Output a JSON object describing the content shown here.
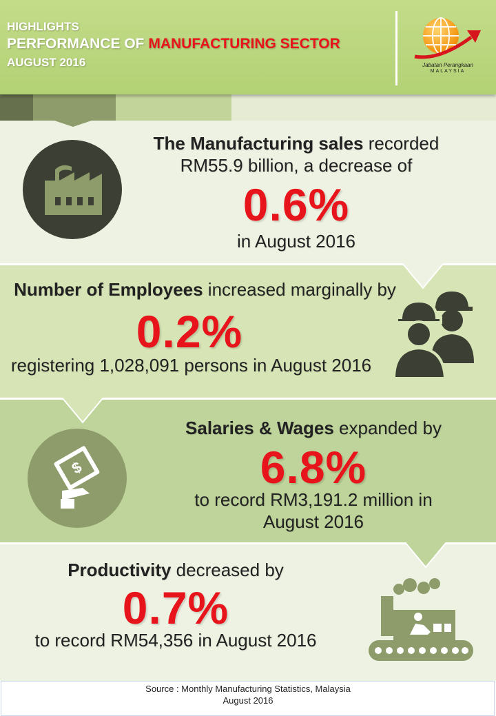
{
  "header": {
    "line1": "HIGHLIGHTS",
    "line2_white": "PERFORMANCE OF ",
    "line2_red": "MANUFACTURING SECTOR",
    "line3": "AUGUST 2016",
    "logo_line1": "Jabatan Perangkaan",
    "logo_line2": "MALAYSIA",
    "logo_icon": "globe-arrow-logo"
  },
  "sales": {
    "bold": "The Manufacturing sales",
    "rest": " recorded",
    "line2": "RM55.9 billion, a decrease of",
    "percent": "0.6%",
    "line4": "in August 2016",
    "icon": "factory-icon"
  },
  "employees": {
    "bold": "Number of Employees",
    "rest": " increased marginally by",
    "percent": "0.2%",
    "line3": "registering 1,028,091 persons in August 2016",
    "icon": "workers-icon"
  },
  "salaries": {
    "bold": "Salaries & Wages",
    "rest": " expanded by",
    "percent": "6.8%",
    "line3": "to record RM3,191.2 million in",
    "line4": "August 2016",
    "icon": "money-hand-icon"
  },
  "productivity": {
    "bold": "Productivity",
    "rest": " decreased by",
    "percent": "0.7%",
    "line3": "to record RM54,356 in August 2016",
    "icon": "production-line-icon"
  },
  "footer": {
    "line1": "Source : Monthly Manufacturing Statistics, Malaysia",
    "line2": "August 2016"
  },
  "colors": {
    "header_green": "#b3d175",
    "highlight_red": "#e8141b",
    "icon_dark": "#3c3f33",
    "icon_green": "#8d9c6a"
  }
}
